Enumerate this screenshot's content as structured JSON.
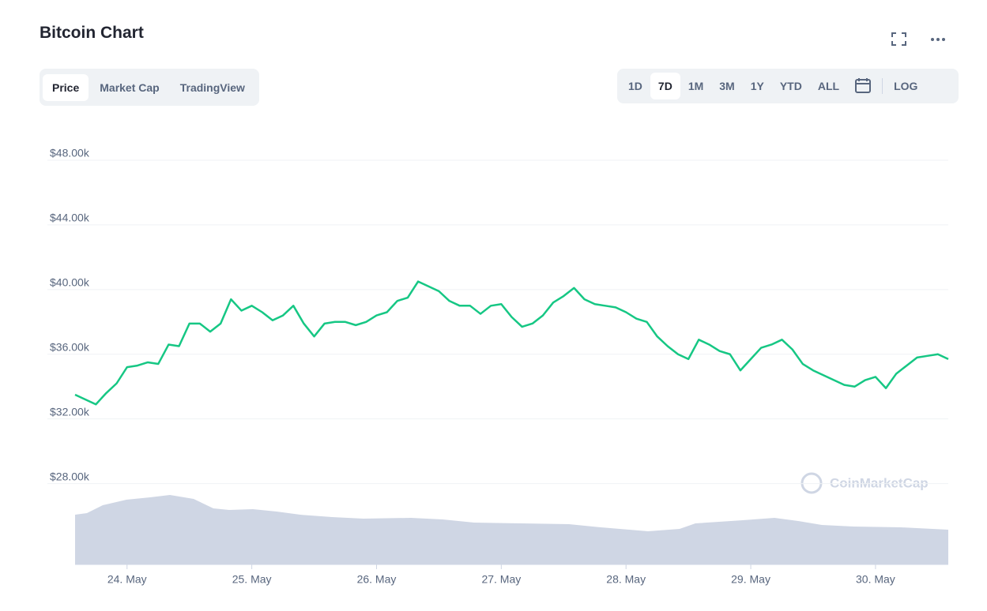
{
  "tabs": [
    "Price",
    "Market Cap",
    "TradingView"
  ],
  "ranges": [
    "1D",
    "7D",
    "1M",
    "3M",
    "1Y",
    "YTD",
    "ALL"
  ],
  "log_button": "LOG",
  "watermark": "CoinMarketCap",
  "chart_data": {
    "type": "line",
    "title": "Bitcoin Chart",
    "categories": [
      null,
      null,
      null,
      null,
      null,
      "24. May",
      null,
      null,
      null,
      null,
      null,
      null,
      null,
      null,
      null,
      null,
      null,
      "25. May",
      null,
      null,
      null,
      null,
      null,
      null,
      null,
      null,
      null,
      null,
      null,
      "26. May",
      null,
      null,
      null,
      null,
      null,
      null,
      null,
      null,
      null,
      null,
      null,
      "27. May",
      null,
      null,
      null,
      null,
      null,
      null,
      null,
      null,
      null,
      null,
      null,
      "28. May",
      null,
      null,
      null,
      null,
      null,
      null,
      null,
      null,
      null,
      null,
      null,
      "29. May",
      null,
      null,
      null,
      null,
      null,
      null,
      null,
      null,
      null,
      null,
      null,
      "30. May",
      null,
      null,
      null,
      null,
      null,
      null,
      null
    ],
    "series": [
      {
        "color": "#16c784",
        "values": [
          33500,
          33200,
          32900,
          33600,
          34200,
          35200,
          35300,
          35500,
          35400,
          36600,
          36500,
          37900,
          37900,
          37400,
          37900,
          39400,
          38700,
          39000,
          38600,
          38100,
          38400,
          39000,
          37900,
          37100,
          37900,
          38000,
          38000,
          37800,
          38000,
          38400,
          38600,
          39300,
          39500,
          40500,
          40200,
          39900,
          39300,
          39000,
          39000,
          38500,
          39000,
          39100,
          38300,
          37700,
          37900,
          38400,
          39200,
          39600,
          40100,
          39400,
          39100,
          39000,
          38900,
          38600,
          38200,
          38000,
          37100,
          36500,
          36000,
          35700,
          36900,
          36600,
          36200,
          36000,
          35000,
          35700,
          36400,
          36600,
          36900,
          36300,
          35400,
          35000,
          34700,
          34400,
          34100,
          34000,
          34400,
          34600,
          33900,
          34800,
          35300,
          35800,
          35900,
          36000,
          35700
        ]
      }
    ],
    "ylim": [
      23000,
      49000
    ],
    "yticks": [
      {
        "value": 28000,
        "label": "$28.00k"
      },
      {
        "value": 32000,
        "label": "$32.00k"
      },
      {
        "value": 36000,
        "label": "$36.00k"
      },
      {
        "value": 40000,
        "label": "$40.00k"
      },
      {
        "value": 44000,
        "label": "$44.00k"
      },
      {
        "value": 48000,
        "label": "$48.00k"
      }
    ],
    "grid": true
  }
}
